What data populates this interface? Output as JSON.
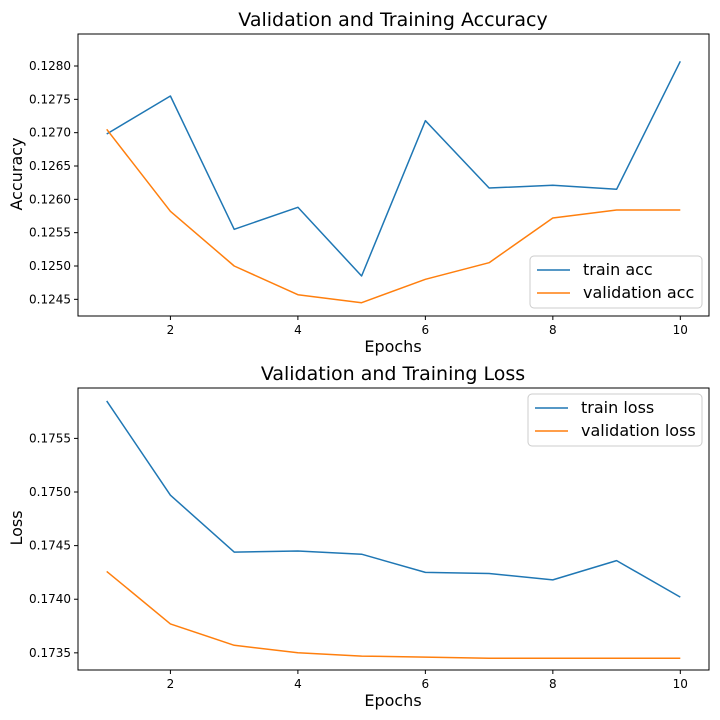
{
  "chart_data": [
    {
      "type": "line",
      "title": "Validation and Training Accuracy",
      "xlabel": "Epochs",
      "ylabel": "Accuracy",
      "x": [
        1,
        2,
        3,
        4,
        5,
        6,
        7,
        8,
        9,
        10
      ],
      "xlim": [
        0.55,
        10.45
      ],
      "ylim": [
        0.12425,
        0.12848
      ],
      "xticks": [
        2,
        4,
        6,
        8,
        10
      ],
      "xtick_labels": [
        "2",
        "4",
        "6",
        "8",
        "10"
      ],
      "yticks": [
        0.1245,
        0.125,
        0.1255,
        0.126,
        0.1265,
        0.127,
        0.1275,
        0.128
      ],
      "ytick_labels": [
        "0.1245",
        "0.1250",
        "0.1255",
        "0.1260",
        "0.1265",
        "0.1270",
        "0.1275",
        "0.1280"
      ],
      "grid": false,
      "legend_position": "lower-right",
      "series": [
        {
          "name": "train acc",
          "color": "#1f77b4",
          "values": [
            0.12698,
            0.12755,
            0.12555,
            0.12588,
            0.12485,
            0.12718,
            0.12617,
            0.12621,
            0.12615,
            0.12807
          ]
        },
        {
          "name": "validation acc",
          "color": "#ff7f0e",
          "values": [
            0.12705,
            0.12582,
            0.125,
            0.12457,
            0.12445,
            0.1248,
            0.12505,
            0.12572,
            0.12584,
            0.12584
          ]
        }
      ]
    },
    {
      "type": "line",
      "title": "Validation and Training Loss",
      "xlabel": "Epochs",
      "ylabel": "Loss",
      "x": [
        1,
        2,
        3,
        4,
        5,
        6,
        7,
        8,
        9,
        10
      ],
      "xlim": [
        0.55,
        10.45
      ],
      "ylim": [
        0.17334,
        0.17597
      ],
      "xticks": [
        2,
        4,
        6,
        8,
        10
      ],
      "xtick_labels": [
        "2",
        "4",
        "6",
        "8",
        "10"
      ],
      "yticks": [
        0.1735,
        0.174,
        0.1745,
        0.175,
        0.1755
      ],
      "ytick_labels": [
        "0.1735",
        "0.1740",
        "0.1745",
        "0.1750",
        "0.1755"
      ],
      "grid": false,
      "legend_position": "upper-right",
      "series": [
        {
          "name": "train loss",
          "color": "#1f77b4",
          "values": [
            0.17585,
            0.17497,
            0.17444,
            0.17445,
            0.17442,
            0.17425,
            0.17424,
            0.17418,
            0.17436,
            0.17402
          ]
        },
        {
          "name": "validation loss",
          "color": "#ff7f0e",
          "values": [
            0.17426,
            0.17377,
            0.17357,
            0.1735,
            0.17347,
            0.17346,
            0.17345,
            0.17345,
            0.17345,
            0.17345
          ]
        }
      ]
    }
  ]
}
